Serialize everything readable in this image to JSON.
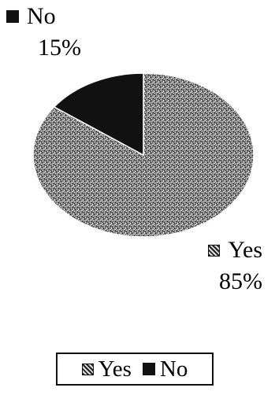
{
  "chart_data": {
    "type": "pie",
    "title": "",
    "slices": [
      {
        "label": "Yes",
        "value": 85,
        "value_label": "85%",
        "color": "#8a8a8a",
        "pattern": "speckled-gray"
      },
      {
        "label": "No",
        "value": 15,
        "value_label": "15%",
        "color": "#111111",
        "pattern": "solid-black"
      }
    ],
    "legend": {
      "placement": "bottom-center",
      "items": [
        {
          "label": "Yes",
          "swatch": "speckled-gray"
        },
        {
          "label": "No",
          "swatch": "solid-black"
        }
      ]
    }
  }
}
